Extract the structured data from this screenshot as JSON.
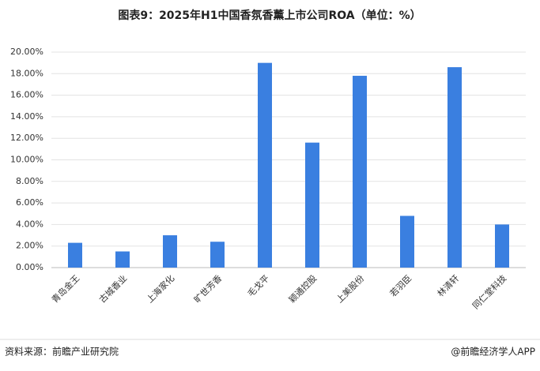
{
  "chart_data": {
    "type": "bar",
    "title": "图表9：2025年H1中国香氛香薰上市公司ROA（单位：%）",
    "categories": [
      "青岛金王",
      "古城香业",
      "上海家化",
      "旷世芳香",
      "毛戈平",
      "颖通控股",
      "上美股份",
      "若羽臣",
      "林清轩",
      "同仁堂科技"
    ],
    "values": [
      2.3,
      1.5,
      3.0,
      2.4,
      19.0,
      11.6,
      17.8,
      4.8,
      18.6,
      4.0
    ],
    "color": "#3a7fe0",
    "ylim": [
      0,
      20
    ],
    "yticks": [
      {
        "value": 0,
        "label": "0.00%"
      },
      {
        "value": 2,
        "label": "2.00%"
      },
      {
        "value": 4,
        "label": "4.00%"
      },
      {
        "value": 6,
        "label": "6.00%"
      },
      {
        "value": 8,
        "label": "8.00%"
      },
      {
        "value": 10,
        "label": "10.00%"
      },
      {
        "value": 12,
        "label": "12.00%"
      },
      {
        "value": 14,
        "label": "14.00%"
      },
      {
        "value": 16,
        "label": "16.00%"
      },
      {
        "value": 18,
        "label": "18.00%"
      },
      {
        "value": 20,
        "label": "20.00%"
      }
    ],
    "grid": true
  },
  "footer": {
    "source": "资料来源：前瞻产业研究院",
    "credit": "@前瞻经济学人APP"
  }
}
